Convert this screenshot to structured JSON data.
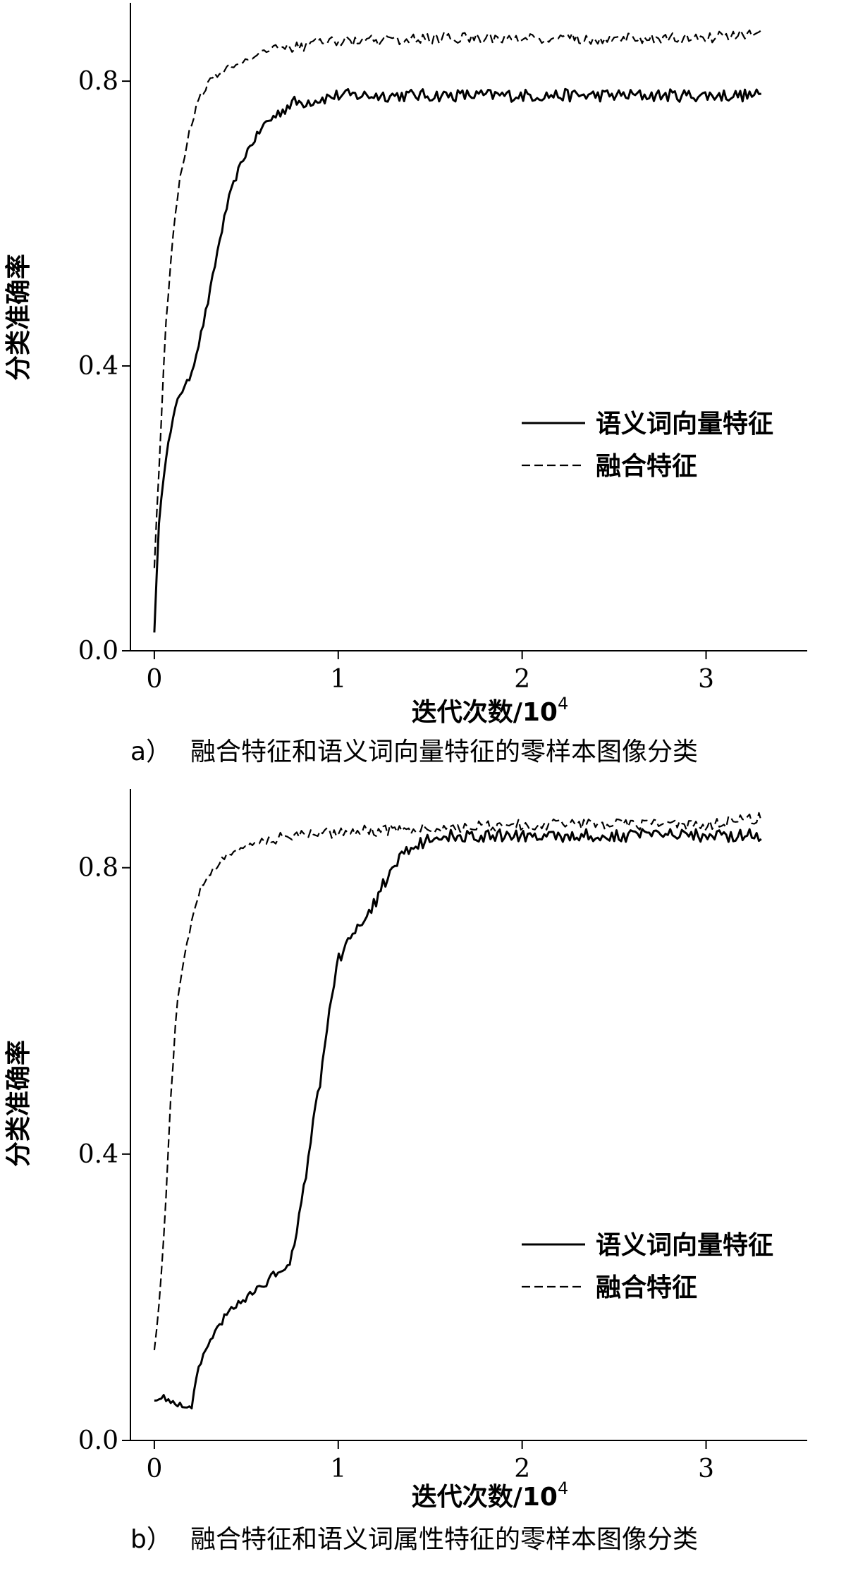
{
  "chart_data": [
    {
      "type": "line",
      "panel_label": "a）",
      "caption": "融合特征和语义词向量特征的零样本图像分类",
      "xlabel": "迭代次数/10",
      "xlabel_exp": "4",
      "ylabel": "分类准确率",
      "xlim": [
        -0.13,
        3.55
      ],
      "ylim": [
        0.0,
        0.91
      ],
      "xticks": [
        "0",
        "1",
        "2",
        "3"
      ],
      "yticks": [
        "0.0",
        "0.4",
        "0.8"
      ],
      "legend_position": "center-right",
      "series": [
        {
          "name": "语义词向量特征",
          "style": "solid",
          "x": [
            0.0,
            0.03,
            0.06,
            0.1,
            0.13,
            0.17,
            0.2,
            0.25,
            0.3,
            0.35,
            0.4,
            0.45,
            0.5,
            0.55,
            0.6,
            0.65,
            0.7,
            0.75,
            0.8,
            0.9,
            1.0,
            1.2,
            1.5,
            2.0,
            2.5,
            3.0,
            3.3
          ],
          "y": [
            0.03,
            0.2,
            0.27,
            0.32,
            0.36,
            0.37,
            0.39,
            0.44,
            0.5,
            0.57,
            0.63,
            0.67,
            0.7,
            0.72,
            0.74,
            0.75,
            0.76,
            0.77,
            0.77,
            0.775,
            0.78,
            0.78,
            0.78,
            0.78,
            0.78,
            0.78,
            0.78
          ]
        },
        {
          "name": "融合特征",
          "style": "dashed",
          "x": [
            0.0,
            0.03,
            0.06,
            0.09,
            0.12,
            0.15,
            0.2,
            0.25,
            0.3,
            0.4,
            0.5,
            0.6,
            0.8,
            1.0,
            1.5,
            2.0,
            2.5,
            3.0,
            3.3
          ],
          "y": [
            0.12,
            0.28,
            0.45,
            0.55,
            0.63,
            0.68,
            0.74,
            0.78,
            0.8,
            0.82,
            0.83,
            0.84,
            0.85,
            0.855,
            0.86,
            0.86,
            0.86,
            0.86,
            0.87
          ]
        }
      ]
    },
    {
      "type": "line",
      "panel_label": "b）",
      "caption": "融合特征和语义词属性特征的零样本图像分类",
      "xlabel": "迭代次数/10",
      "xlabel_exp": "4",
      "ylabel": "分类准确率",
      "xlim": [
        -0.13,
        3.55
      ],
      "ylim": [
        0.0,
        0.91
      ],
      "xticks": [
        "0",
        "1",
        "2",
        "3"
      ],
      "yticks": [
        "0.0",
        "0.4",
        "0.8"
      ],
      "legend_position": "center-right",
      "series": [
        {
          "name": "语义词向量特征",
          "style": "solid",
          "x": [
            0.0,
            0.05,
            0.1,
            0.15,
            0.2,
            0.25,
            0.3,
            0.35,
            0.4,
            0.5,
            0.6,
            0.7,
            0.75,
            0.8,
            0.85,
            0.9,
            0.95,
            1.0,
            1.05,
            1.1,
            1.15,
            1.2,
            1.25,
            1.3,
            1.35,
            1.4,
            1.5,
            1.6,
            1.8,
            2.0,
            2.5,
            3.0,
            3.3
          ],
          "y": [
            0.06,
            0.06,
            0.055,
            0.05,
            0.045,
            0.11,
            0.14,
            0.16,
            0.18,
            0.2,
            0.22,
            0.24,
            0.26,
            0.33,
            0.42,
            0.5,
            0.6,
            0.67,
            0.7,
            0.72,
            0.73,
            0.75,
            0.78,
            0.8,
            0.82,
            0.83,
            0.84,
            0.845,
            0.845,
            0.845,
            0.845,
            0.845,
            0.845
          ]
        },
        {
          "name": "融合特征",
          "style": "dashed",
          "x": [
            0.0,
            0.03,
            0.06,
            0.09,
            0.12,
            0.15,
            0.2,
            0.25,
            0.3,
            0.4,
            0.5,
            0.6,
            0.8,
            1.0,
            1.5,
            2.0,
            2.5,
            3.0,
            3.3
          ],
          "y": [
            0.13,
            0.2,
            0.32,
            0.48,
            0.6,
            0.66,
            0.72,
            0.77,
            0.79,
            0.82,
            0.83,
            0.84,
            0.845,
            0.85,
            0.855,
            0.86,
            0.86,
            0.86,
            0.87
          ]
        }
      ]
    }
  ]
}
